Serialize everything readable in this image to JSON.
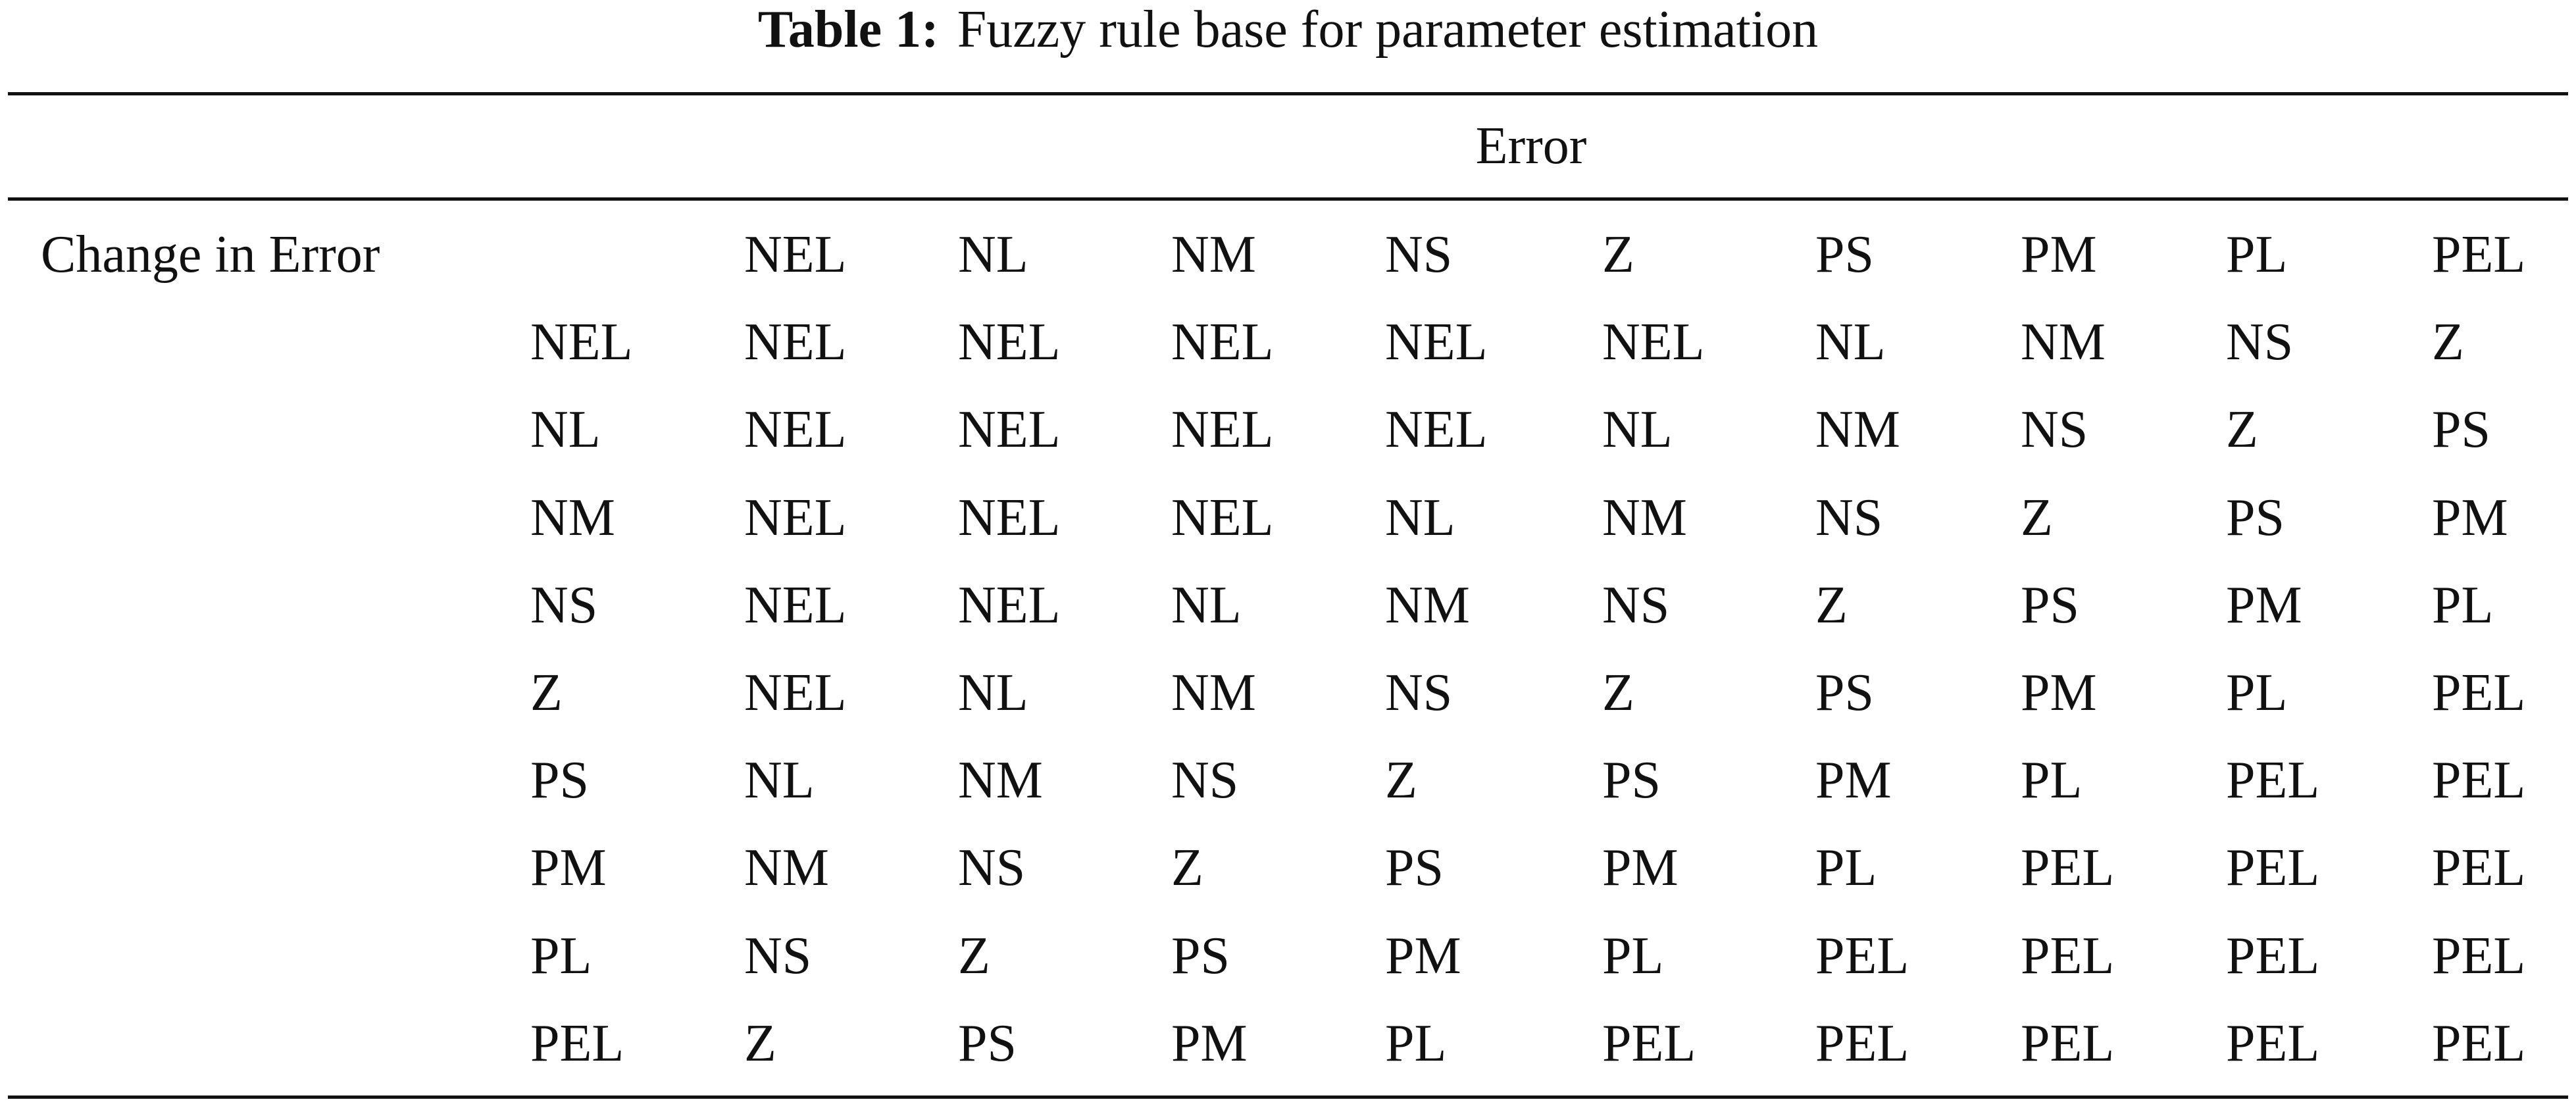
{
  "title": {
    "label": "Table 1:",
    "text": "Fuzzy rule base for parameter estimation"
  },
  "table": {
    "group_header": "Error",
    "row_header": "Change in Error",
    "columns": [
      "NEL",
      "NL",
      "NM",
      "NS",
      "Z",
      "PS",
      "PM",
      "PL",
      "PEL"
    ],
    "rows": [
      {
        "label": "NEL",
        "cells": [
          "NEL",
          "NEL",
          "NEL",
          "NEL",
          "NEL",
          "NL",
          "NM",
          "NS",
          "Z"
        ]
      },
      {
        "label": "NL",
        "cells": [
          "NEL",
          "NEL",
          "NEL",
          "NEL",
          "NL",
          "NM",
          "NS",
          "Z",
          "PS"
        ]
      },
      {
        "label": "NM",
        "cells": [
          "NEL",
          "NEL",
          "NEL",
          "NL",
          "NM",
          "NS",
          "Z",
          "PS",
          "PM"
        ]
      },
      {
        "label": "NS",
        "cells": [
          "NEL",
          "NEL",
          "NL",
          "NM",
          "NS",
          "Z",
          "PS",
          "PM",
          "PL"
        ]
      },
      {
        "label": "Z",
        "cells": [
          "NEL",
          "NL",
          "NM",
          "NS",
          "Z",
          "PS",
          "PM",
          "PL",
          "PEL"
        ]
      },
      {
        "label": "PS",
        "cells": [
          "NL",
          "NM",
          "NS",
          "Z",
          "PS",
          "PM",
          "PL",
          "PEL",
          "PEL"
        ]
      },
      {
        "label": "PM",
        "cells": [
          "NM",
          "NS",
          "Z",
          "PS",
          "PM",
          "PL",
          "PEL",
          "PEL",
          "PEL"
        ]
      },
      {
        "label": "PL",
        "cells": [
          "NS",
          "Z",
          "PS",
          "PM",
          "PL",
          "PEL",
          "PEL",
          "PEL",
          "PEL"
        ]
      },
      {
        "label": "PEL",
        "cells": [
          "Z",
          "PS",
          "PM",
          "PL",
          "PEL",
          "PEL",
          "PEL",
          "PEL",
          "PEL"
        ]
      }
    ]
  }
}
